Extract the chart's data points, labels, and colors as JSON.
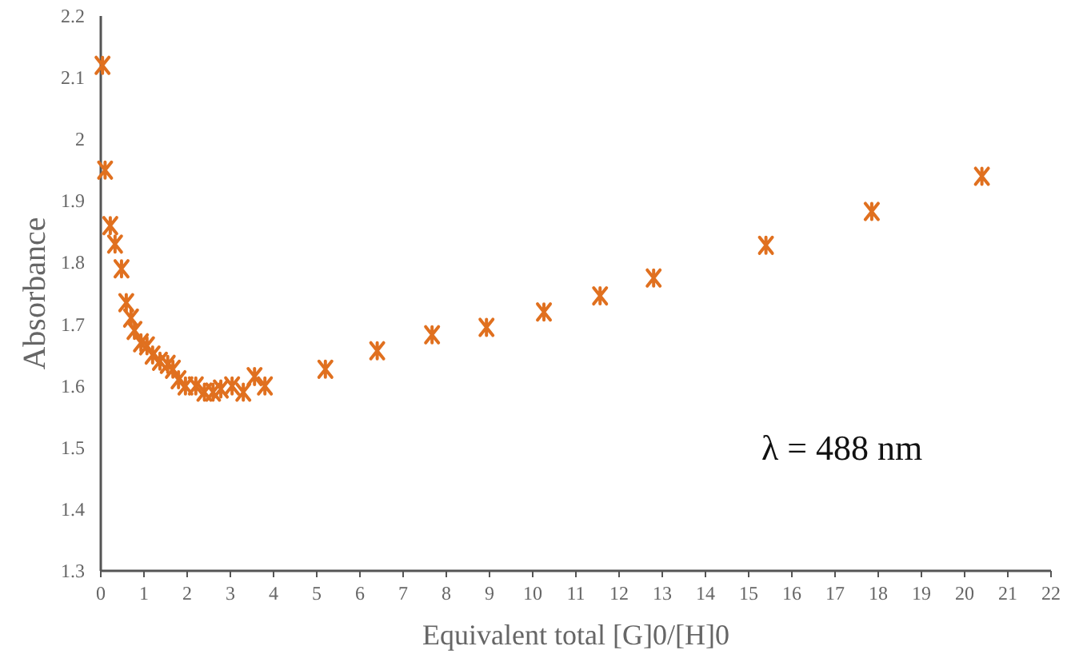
{
  "chart_data": {
    "type": "scatter",
    "xlabel": "Equivalent total [G]0/[H]0",
    "ylabel": "Absorbance",
    "annotations": [
      "λ = 488 nm"
    ],
    "x": [
      0.04,
      0.1,
      0.22,
      0.33,
      0.48,
      0.59,
      0.7,
      0.78,
      0.93,
      1.07,
      1.2,
      1.37,
      1.55,
      1.67,
      1.8,
      1.96,
      2.2,
      2.4,
      2.6,
      2.78,
      3.04,
      3.3,
      3.56,
      3.8,
      5.2,
      6.4,
      7.67,
      8.93,
      10.26,
      11.56,
      12.8,
      15.4,
      17.85,
      20.4
    ],
    "series": [
      {
        "color": "#e0701f",
        "values": [
          2.12,
          1.95,
          1.86,
          1.83,
          1.79,
          1.735,
          1.71,
          1.69,
          1.67,
          1.665,
          1.65,
          1.64,
          1.635,
          1.627,
          1.61,
          1.6,
          1.6,
          1.59,
          1.59,
          1.595,
          1.6,
          1.59,
          1.615,
          1.6,
          1.627,
          1.657,
          1.683,
          1.695,
          1.72,
          1.746,
          1.775,
          1.828,
          1.883,
          1.94
        ]
      }
    ],
    "xlim": [
      0,
      22
    ],
    "xticks": [
      0,
      1,
      2,
      3,
      4,
      5,
      6,
      7,
      8,
      9,
      10,
      11,
      12,
      13,
      14,
      15,
      16,
      17,
      18,
      19,
      20,
      21,
      22
    ],
    "ylim": [
      1.3,
      2.2
    ],
    "yticks": [
      1.3,
      1.4,
      1.5,
      1.6,
      1.7,
      1.8,
      1.9,
      2,
      2.1,
      2.2
    ],
    "grid": false,
    "marker": "cross"
  }
}
